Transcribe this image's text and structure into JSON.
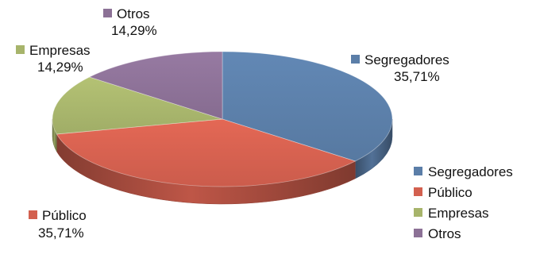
{
  "chart_data": {
    "type": "pie",
    "style": "3d",
    "categories": [
      "Segregadores",
      "Público",
      "Empresas",
      "Otros"
    ],
    "values": [
      35.71,
      35.71,
      14.29,
      14.29
    ],
    "value_labels": [
      "35,71%",
      "35,71%",
      "14,29%",
      "14,29%"
    ],
    "colors": [
      "#5b7ea8",
      "#d3604f",
      "#a7b46b",
      "#8c7196"
    ],
    "legend_position": "bottom-right",
    "start_angle": "top",
    "direction": "clockwise"
  }
}
